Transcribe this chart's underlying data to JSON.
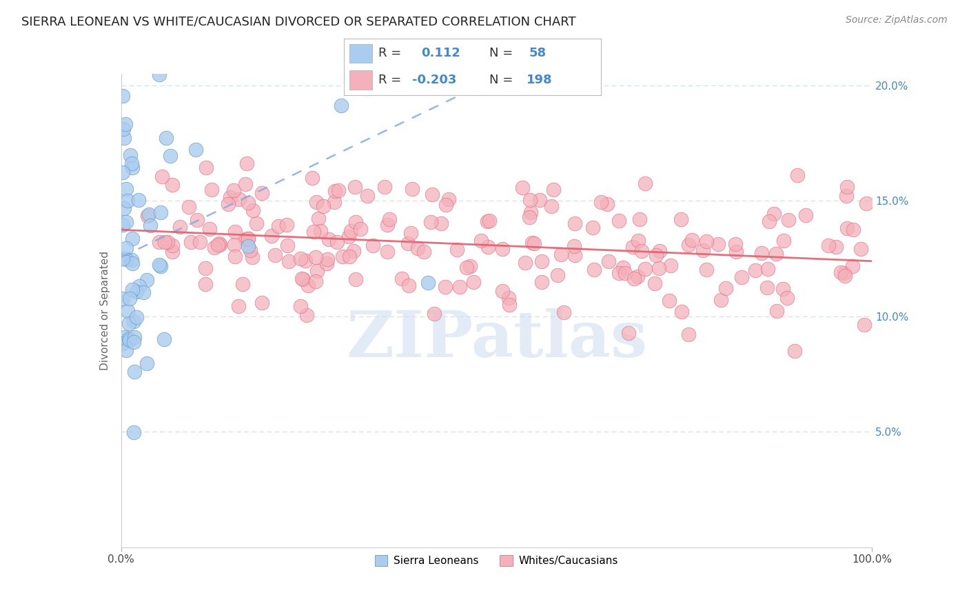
{
  "title": "SIERRA LEONEAN VS WHITE/CAUCASIAN DIVORCED OR SEPARATED CORRELATION CHART",
  "source_text": "Source: ZipAtlas.com",
  "ylabel": "Divorced or Separated",
  "watermark": "ZIPatlas",
  "legend_label_1": "Sierra Leoneans",
  "legend_label_2": "Whites/Caucasians",
  "r1": 0.112,
  "n1": 58,
  "r2": -0.203,
  "n2": 198,
  "color_blue_fill": "#aaccee",
  "color_blue_edge": "#6699cc",
  "color_pink_fill": "#f4b0bb",
  "color_pink_edge": "#e07080",
  "color_blue_trend": "#88aadd",
  "color_pink_trend": "#e06070",
  "xlim": [
    0.0,
    1.0
  ],
  "ylim": [
    0.0,
    0.205
  ],
  "yticks": [
    0.05,
    0.1,
    0.15,
    0.2
  ],
  "ytick_labels": [
    "5.0%",
    "10.0%",
    "15.0%",
    "20.0%"
  ],
  "title_fontsize": 13,
  "axis_label_fontsize": 11,
  "tick_fontsize": 11,
  "watermark_fontsize": 68,
  "source_fontsize": 10,
  "legend_entry_fontsize": 13,
  "bg_color": "#ffffff",
  "grid_color": "#ccddee",
  "tick_color": "#4488cc"
}
